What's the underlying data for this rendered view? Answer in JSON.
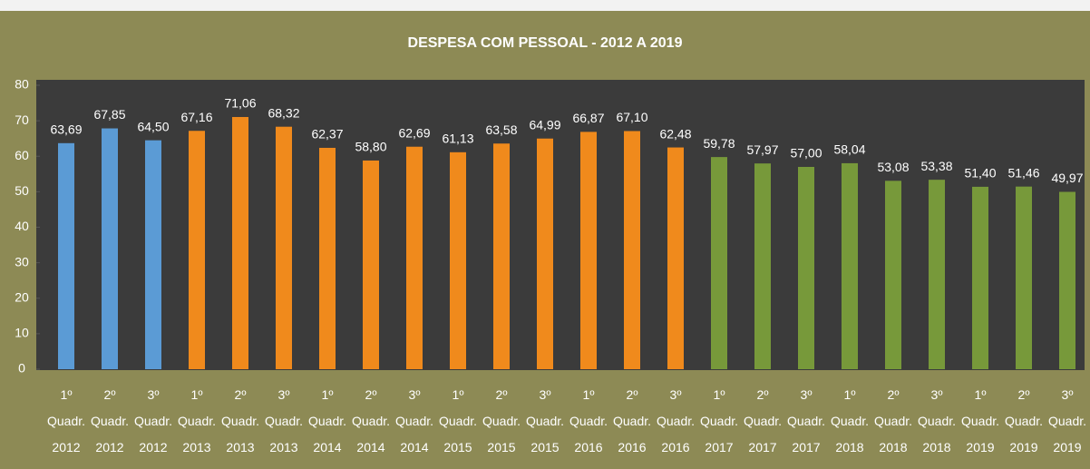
{
  "chart_data": {
    "type": "bar",
    "title": "DESPESA COM PESSOAL - 2012 A 2019",
    "categories": [
      "1º Quadr. 2012",
      "2º Quadr. 2012",
      "3º Quadr. 2012",
      "1º Quadr. 2013",
      "2º Quadr. 2013",
      "3º Quadr. 2013",
      "1º Quadr. 2014",
      "2º Quadr. 2014",
      "3º Quadr. 2014",
      "1º Quadr. 2015",
      "2º Quadr. 2015",
      "3º Quadr. 2015",
      "1º Quadr. 2016",
      "2º Quadr. 2016",
      "3º Quadr. 2016",
      "1º Quadr. 2017",
      "2º Quadr. 2017",
      "3º Quadr. 2017",
      "1º Quadr. 2018",
      "2º Quadr. 2018",
      "3º Quadr. 2018",
      "1º Quadr. 2019",
      "2º Quadr. 2019",
      "3º Quadr. 2019"
    ],
    "values": [
      63.69,
      67.85,
      64.5,
      67.16,
      71.06,
      68.32,
      62.37,
      58.8,
      62.69,
      61.13,
      63.58,
      64.99,
      66.87,
      67.1,
      62.48,
      59.78,
      57.97,
      57.0,
      58.04,
      53.08,
      53.38,
      51.4,
      51.46,
      49.97
    ],
    "value_labels": [
      "63,69",
      "67,85",
      "64,50",
      "67,16",
      "71,06",
      "68,32",
      "62,37",
      "58,80",
      "62,69",
      "61,13",
      "63,58",
      "64,99",
      "66,87",
      "67,10",
      "62,48",
      "59,78",
      "57,97",
      "57,00",
      "58,04",
      "53,08",
      "53,38",
      "51,40",
      "51,46",
      "49,97"
    ],
    "colors": [
      "#5b9bd5",
      "#5b9bd5",
      "#5b9bd5",
      "#f08a1c",
      "#f08a1c",
      "#f08a1c",
      "#f08a1c",
      "#f08a1c",
      "#f08a1c",
      "#f08a1c",
      "#f08a1c",
      "#f08a1c",
      "#f08a1c",
      "#f08a1c",
      "#f08a1c",
      "#77993a",
      "#77993a",
      "#77993a",
      "#77993a",
      "#77993a",
      "#77993a",
      "#77993a",
      "#77993a",
      "#77993a"
    ],
    "ylim": [
      0,
      80
    ],
    "yticks": [
      0,
      10,
      20,
      30,
      40,
      50,
      60,
      70,
      80
    ],
    "grid": false
  }
}
